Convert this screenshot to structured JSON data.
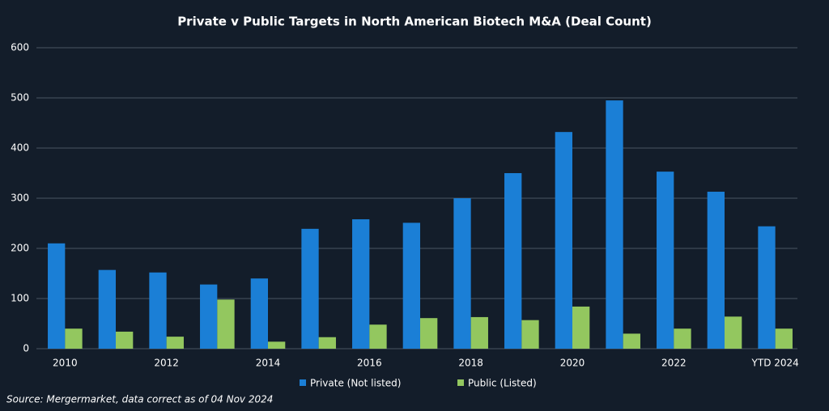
{
  "chart_data": {
    "type": "bar",
    "title": "Private v Public Targets in North American Biotech M&A (Deal Count)",
    "categories": [
      "2010",
      null,
      "2012",
      null,
      "2014",
      null,
      "2016",
      null,
      "2018",
      null,
      "2020",
      null,
      "2022",
      null,
      "YTD 2024"
    ],
    "series": [
      {
        "name": "Private (Not listed)",
        "color": "#1b7fd6",
        "values": [
          210,
          157,
          152,
          128,
          140,
          239,
          258,
          251,
          300,
          350,
          432,
          495,
          353,
          313,
          244
        ]
      },
      {
        "name": "Public (Listed)",
        "color": "#93c75f",
        "values": [
          40,
          34,
          24,
          98,
          14,
          23,
          48,
          61,
          63,
          57,
          84,
          30,
          40,
          64,
          40
        ]
      }
    ],
    "ylim": [
      0,
      600
    ],
    "yticks": [
      0,
      100,
      200,
      300,
      400,
      500,
      600
    ],
    "grid": true,
    "legend": "bottom",
    "source": "Source: Mergermarket, data correct as of 04 Nov 2024"
  }
}
